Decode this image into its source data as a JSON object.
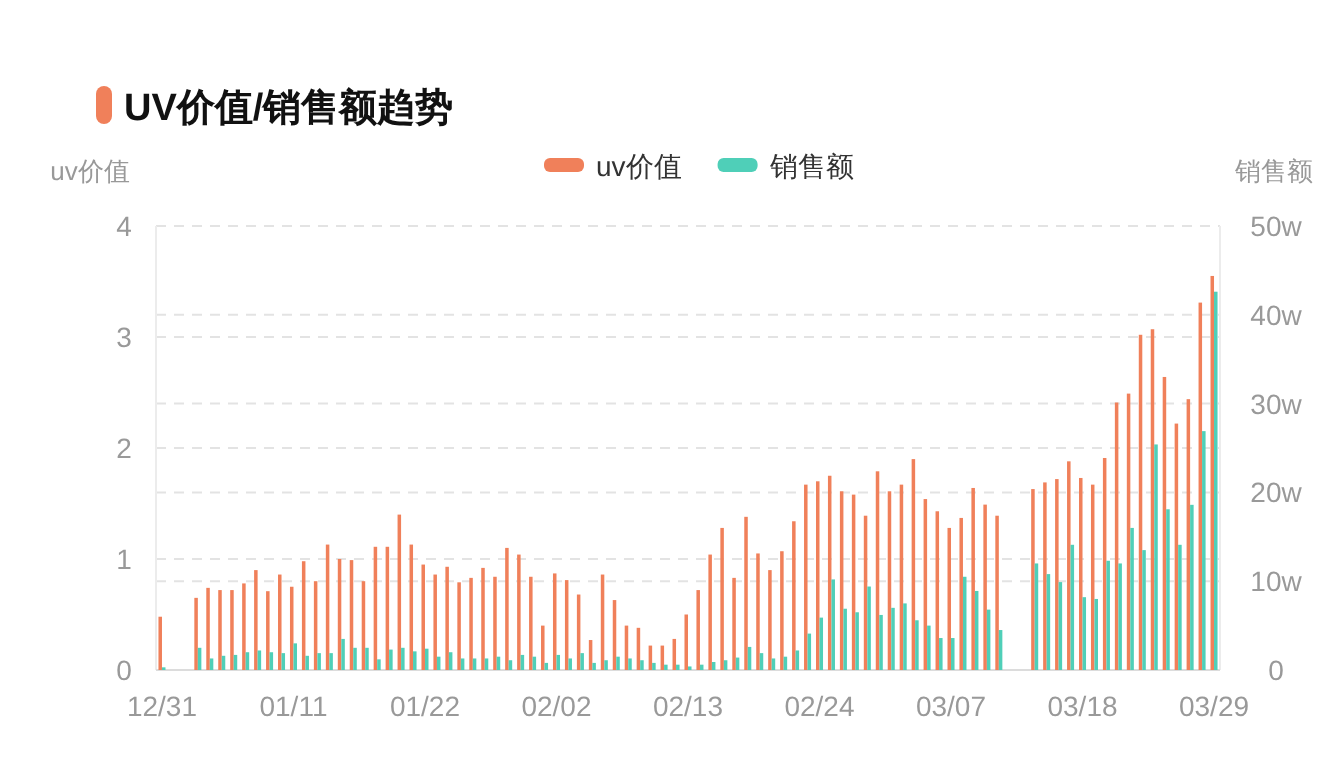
{
  "chart_data": {
    "type": "bar",
    "title": "UV价值/销售额趋势",
    "ylabel": "uv价值",
    "y2label": "销售额",
    "legend": "top",
    "grid": "y",
    "categories": [
      "12/31",
      null,
      null,
      null,
      null,
      null,
      null,
      null,
      null,
      null,
      null,
      "01/11",
      null,
      null,
      null,
      null,
      null,
      null,
      null,
      null,
      null,
      null,
      "01/22",
      null,
      null,
      null,
      null,
      null,
      null,
      null,
      null,
      null,
      null,
      "02/02",
      null,
      null,
      null,
      null,
      null,
      null,
      null,
      null,
      null,
      null,
      "02/13",
      null,
      null,
      null,
      null,
      null,
      null,
      null,
      null,
      null,
      null,
      "02/24",
      null,
      null,
      null,
      null,
      null,
      null,
      null,
      null,
      null,
      null,
      "03/07",
      null,
      null,
      null,
      null,
      null,
      null,
      null,
      null,
      null,
      null,
      "03/18",
      null,
      null,
      null,
      null,
      null,
      null,
      null,
      null,
      null,
      null,
      "03/29"
    ],
    "ylim": [
      0,
      4
    ],
    "yticks": [
      0,
      1,
      2,
      3,
      4
    ],
    "y2lim": [
      0,
      50
    ],
    "y2ticks": [
      0,
      {
        "value": 10,
        "label": "10w"
      },
      {
        "value": 20,
        "label": "20w"
      },
      {
        "value": 30,
        "label": "30w"
      },
      {
        "value": 40,
        "label": "40w"
      },
      {
        "value": 50,
        "label": "50w"
      }
    ],
    "series": [
      {
        "name": "uv价值",
        "color": "#f0805a",
        "values": [
          0.48,
          null,
          null,
          0.65,
          0.74,
          0.72,
          0.72,
          0.78,
          0.9,
          0.71,
          0.86,
          0.75,
          0.98,
          0.8,
          1.13,
          1.0,
          0.99,
          0.8,
          1.11,
          1.11,
          1.4,
          1.13,
          0.95,
          0.86,
          0.93,
          0.79,
          0.83,
          0.92,
          0.84,
          1.1,
          1.04,
          0.84,
          0.4,
          0.87,
          0.81,
          0.68,
          0.27,
          0.86,
          0.63,
          0.4,
          0.38,
          0.22,
          0.22,
          0.28,
          0.5,
          0.72,
          1.04,
          1.28,
          0.83,
          1.38,
          1.05,
          0.9,
          1.07,
          1.34,
          1.67,
          1.7,
          1.75,
          1.61,
          1.58,
          1.39,
          1.79,
          1.61,
          1.67,
          1.9,
          1.54,
          1.43,
          1.28,
          1.37,
          1.64,
          1.49,
          1.39,
          null,
          null,
          1.63,
          1.69,
          1.72,
          1.88,
          1.73,
          1.67,
          1.91,
          2.41,
          2.49,
          3.02,
          3.07,
          2.64,
          2.22,
          2.44,
          3.31,
          3.55
        ]
      },
      {
        "name": "销售额",
        "color": "#4fcfb8",
        "axis": "y2",
        "values": [
          0.3,
          null,
          null,
          2.5,
          1.3,
          1.6,
          1.7,
          2.0,
          2.2,
          2.0,
          1.9,
          3.0,
          1.6,
          1.9,
          1.9,
          3.5,
          2.5,
          2.5,
          1.2,
          2.3,
          2.5,
          2.1,
          2.4,
          1.5,
          2.0,
          1.3,
          1.3,
          1.3,
          1.5,
          1.1,
          1.7,
          1.5,
          0.8,
          1.7,
          1.3,
          1.9,
          0.8,
          1.1,
          1.5,
          1.3,
          1.1,
          0.8,
          0.6,
          0.6,
          0.4,
          0.6,
          0.9,
          1.1,
          1.4,
          2.6,
          1.9,
          1.3,
          1.5,
          2.2,
          4.1,
          5.9,
          10.2,
          6.9,
          6.5,
          9.4,
          6.2,
          7.0,
          7.5,
          5.6,
          5.0,
          3.6,
          3.6,
          10.5,
          8.9,
          6.8,
          4.5,
          null,
          null,
          12.0,
          10.8,
          9.9,
          14.1,
          8.2,
          8.0,
          12.3,
          12.0,
          16.0,
          13.5,
          25.4,
          18.1,
          14.1,
          18.6,
          26.9,
          42.6
        ]
      }
    ]
  }
}
